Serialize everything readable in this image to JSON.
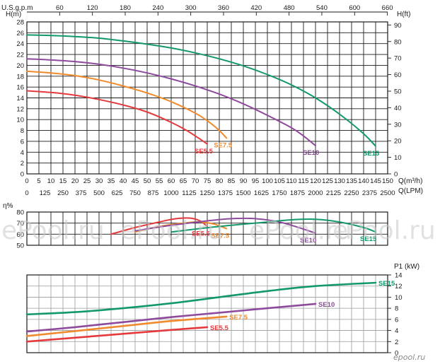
{
  "colors": {
    "SE5.5": "#e53a3d",
    "SE7.5": "#f08a2c",
    "SE10": "#8e4a9c",
    "SE15": "#12986a",
    "grid": "#1a1a1a",
    "watermark": "#c9c9c9"
  },
  "watermarks": [
    "ePool.ru",
    "ePool.ru",
    "ePool.ru",
    "ePool.ru"
  ],
  "logo_text": "epool.ru",
  "chart_data": [
    {
      "id": "head",
      "type": "line",
      "ylabel": "H(m)",
      "ylabel_right": "H(ft)",
      "xlabel": "Q(m³/h)",
      "xlabel2": "Q(LPM)",
      "xlabel_top": "U.S.g.p.m",
      "xlim": [
        0,
        150
      ],
      "ylim": [
        0,
        28
      ],
      "grid": true,
      "x_ticks": [
        "0",
        "5",
        "10",
        "15",
        "20",
        "25",
        "30",
        "35",
        "40",
        "45",
        "50",
        "55",
        "60",
        "65",
        "70",
        "75",
        "80",
        "85",
        "90",
        "95",
        "100",
        "105",
        "110",
        "115",
        "120",
        "125",
        "130",
        "135",
        "140",
        "145",
        "150"
      ],
      "y_ticks": [
        "0",
        "2",
        "4",
        "6",
        "8",
        "10",
        "12",
        "14",
        "16",
        "18",
        "20",
        "22",
        "24",
        "26",
        "28"
      ],
      "lpm_ticks": [
        "0",
        "125",
        "250",
        "375",
        "500",
        "625",
        "750",
        "875",
        "1000",
        "1125",
        "1250",
        "1375",
        "1500",
        "1625",
        "1750",
        "1875",
        "2000",
        "2125",
        "2250",
        "2375",
        "2500"
      ],
      "gpm_ticks": [
        "60",
        "120",
        "180",
        "240",
        "300",
        "360",
        "420",
        "480",
        "540",
        "600",
        "660"
      ],
      "ft_ticks": [
        "0",
        "10",
        "20",
        "30",
        "40",
        "50",
        "60",
        "70",
        "80",
        "90"
      ],
      "series": [
        {
          "name": "SE5.5",
          "x": [
            0,
            10,
            20,
            30,
            40,
            50,
            60,
            66,
            70,
            75
          ],
          "y": [
            15.3,
            15.0,
            14.5,
            13.7,
            12.7,
            11.4,
            9.5,
            8.1,
            7.0,
            5.5
          ]
        },
        {
          "name": "SE7.5",
          "x": [
            0,
            10,
            20,
            30,
            40,
            50,
            60,
            70,
            75,
            80,
            83
          ],
          "y": [
            18.9,
            18.6,
            18.1,
            17.3,
            16.2,
            14.9,
            13.3,
            11.2,
            9.8,
            8.0,
            6.6
          ]
        },
        {
          "name": "SE10",
          "x": [
            0,
            10,
            20,
            30,
            40,
            50,
            60,
            70,
            80,
            90,
            100,
            110,
            115,
            120
          ],
          "y": [
            21.2,
            21.0,
            20.7,
            20.2,
            19.5,
            18.6,
            17.5,
            16.2,
            14.7,
            12.9,
            10.8,
            8.5,
            7.0,
            5.2
          ]
        },
        {
          "name": "SE15",
          "x": [
            0,
            10,
            20,
            30,
            40,
            50,
            60,
            70,
            80,
            90,
            100,
            110,
            120,
            130,
            140,
            145
          ],
          "y": [
            25.6,
            25.5,
            25.3,
            25.0,
            24.5,
            23.9,
            23.2,
            22.3,
            21.2,
            19.9,
            18.3,
            16.4,
            14.0,
            11.0,
            7.4,
            5.1
          ]
        }
      ]
    },
    {
      "id": "efficiency",
      "type": "line",
      "ylabel": "η%",
      "xlim": [
        0,
        150
      ],
      "ylim": [
        50,
        80
      ],
      "y_ticks": [
        "50",
        "60",
        "70",
        "80"
      ],
      "series": [
        {
          "name": "SE5.5",
          "x": [
            35,
            45,
            55,
            62,
            68,
            72,
            75
          ],
          "y": [
            60,
            66,
            71,
            74,
            74.5,
            72,
            67
          ]
        },
        {
          "name": "SE7.5",
          "x": [
            45,
            55,
            65,
            72,
            78,
            83
          ],
          "y": [
            62,
            67,
            70,
            71,
            69,
            65
          ]
        },
        {
          "name": "SE10",
          "x": [
            45,
            60,
            75,
            85,
            95,
            105,
            113,
            120
          ],
          "y": [
            63,
            68,
            72,
            74,
            74,
            71,
            66,
            61
          ]
        },
        {
          "name": "SE15",
          "x": [
            60,
            80,
            100,
            110,
            120,
            130,
            140,
            145
          ],
          "y": [
            62,
            67,
            71,
            73,
            73.5,
            71,
            66,
            62
          ]
        }
      ]
    },
    {
      "id": "power",
      "type": "line",
      "ylabel": "P1 (kW)",
      "xlim": [
        0,
        150
      ],
      "ylim": [
        0,
        14
      ],
      "y_ticks": [
        "0",
        "2",
        "4",
        "6",
        "8",
        "10",
        "12",
        "14"
      ],
      "series": [
        {
          "name": "SE5.5",
          "x": [
            0,
            20,
            40,
            60,
            75
          ],
          "y": [
            2.0,
            2.7,
            3.4,
            4.1,
            4.6
          ]
        },
        {
          "name": "SE7.5",
          "x": [
            0,
            20,
            40,
            60,
            83
          ],
          "y": [
            3.0,
            3.9,
            4.8,
            5.7,
            6.5
          ]
        },
        {
          "name": "SE10",
          "x": [
            0,
            20,
            40,
            60,
            80,
            100,
            120
          ],
          "y": [
            3.8,
            4.6,
            5.5,
            6.4,
            7.2,
            8.0,
            8.8
          ]
        },
        {
          "name": "SE15",
          "x": [
            0,
            20,
            40,
            60,
            80,
            100,
            120,
            145
          ],
          "y": [
            6.9,
            7.3,
            8.0,
            8.9,
            10.0,
            11.1,
            12.0,
            12.6
          ]
        }
      ]
    }
  ]
}
